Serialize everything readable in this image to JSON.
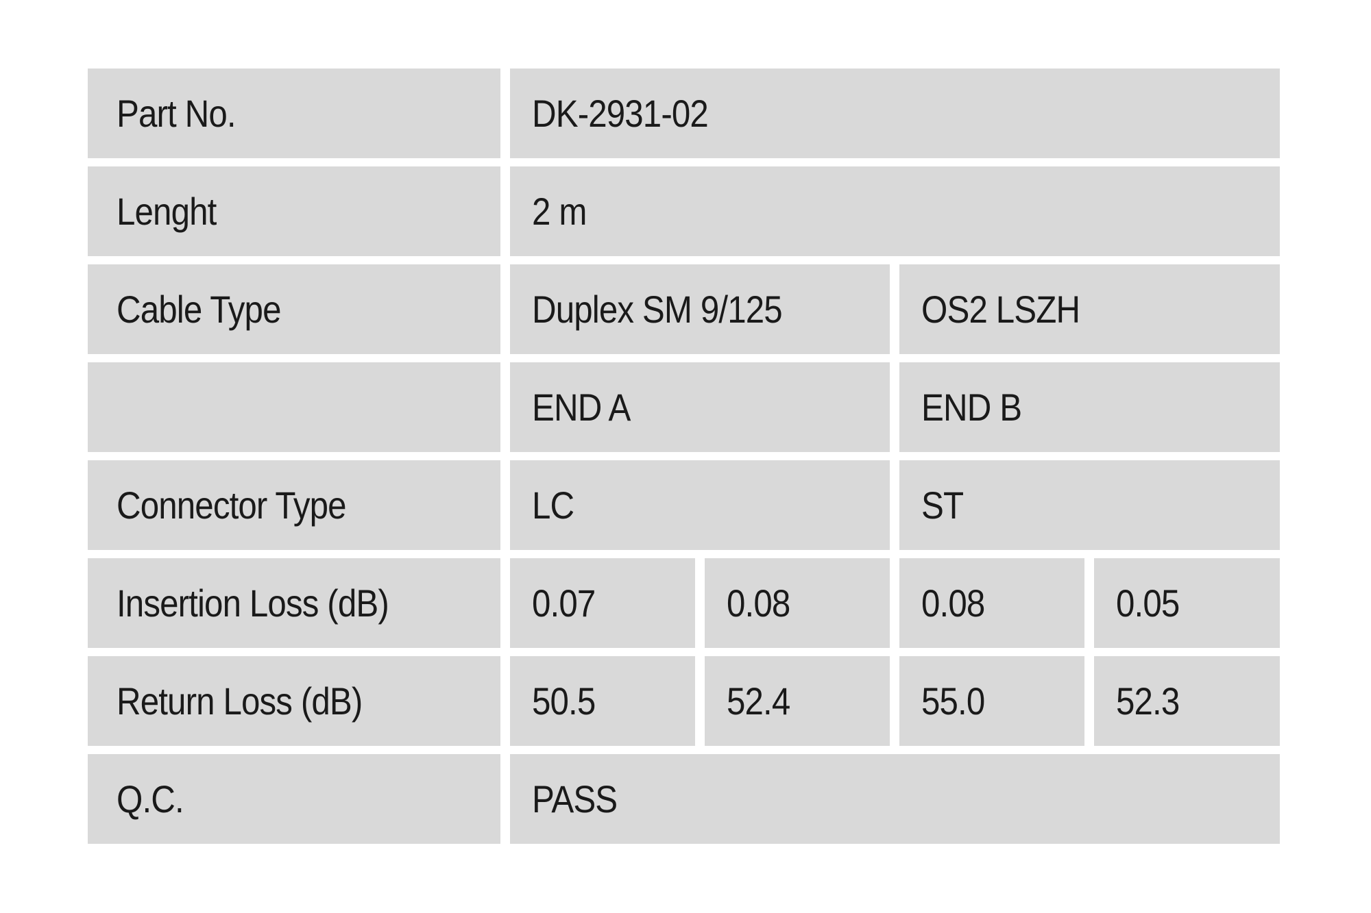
{
  "document": {
    "type": "product-qc-spec-table",
    "colors": {
      "cell_bg": "#d9d9d9",
      "page_bg": "#ffffff",
      "text": "#1a1a1a"
    }
  },
  "table": {
    "rows": [
      {
        "label": "Part No.",
        "values": [
          "DK-2931-02"
        ]
      },
      {
        "label": "Lenght",
        "values": [
          "2 m"
        ]
      },
      {
        "label": "Cable Type",
        "values": [
          "Duplex SM 9/125",
          "OS2 LSZH"
        ]
      },
      {
        "label": "",
        "values": [
          "END A",
          "END B"
        ]
      },
      {
        "label": "Connector Type",
        "values": [
          "LC",
          "ST"
        ]
      },
      {
        "label": "Insertion Loss (dB)",
        "values": [
          "0.07",
          "0.08",
          "0.08",
          "0.05"
        ]
      },
      {
        "label": "Return Loss (dB)",
        "values": [
          "50.5",
          "52.4",
          "55.0",
          "52.3"
        ]
      },
      {
        "label": "Q.C.",
        "values": [
          "PASS"
        ]
      }
    ]
  }
}
